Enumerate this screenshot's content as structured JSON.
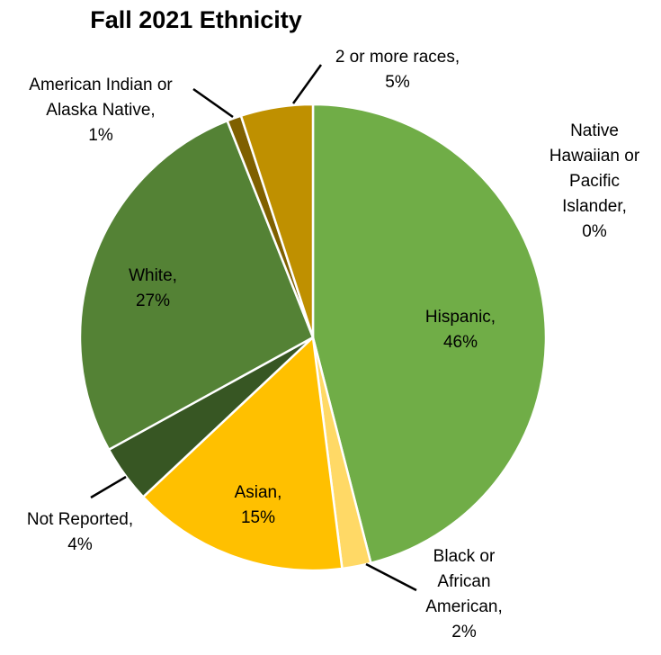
{
  "chart_data": {
    "type": "pie",
    "title": "Fall 2021 Ethnicity",
    "start_angle_deg": 0,
    "direction": "clockwise",
    "slices": [
      {
        "key": "hispanic",
        "label_lines": [
          "Hispanic,",
          "46%"
        ],
        "value": 46,
        "color": "#70AD47"
      },
      {
        "key": "black",
        "label_lines": [
          "Black or",
          "African",
          "American,",
          "2%"
        ],
        "value": 2,
        "color": "#FFD966"
      },
      {
        "key": "asian",
        "label_lines": [
          "Asian,",
          "15%"
        ],
        "value": 15,
        "color": "#FFC000"
      },
      {
        "key": "not-reported",
        "label_lines": [
          "Not Reported,",
          "4%"
        ],
        "value": 4,
        "color": "#375623"
      },
      {
        "key": "white",
        "label_lines": [
          "White,",
          "27%"
        ],
        "value": 27,
        "color": "#548235"
      },
      {
        "key": "american-indian",
        "label_lines": [
          "American Indian or",
          "Alaska Native,",
          "1%"
        ],
        "value": 1,
        "color": "#7F6000"
      },
      {
        "key": "two-or-more",
        "label_lines": [
          "2 or more races,",
          "5%"
        ],
        "value": 5,
        "color": "#BF9000"
      },
      {
        "key": "native-hawaiian",
        "label_lines": [
          "Native",
          "Hawaiian or",
          "Pacific",
          "Islander,",
          "0%"
        ],
        "value": 0,
        "color": "#A9D18E"
      }
    ]
  }
}
